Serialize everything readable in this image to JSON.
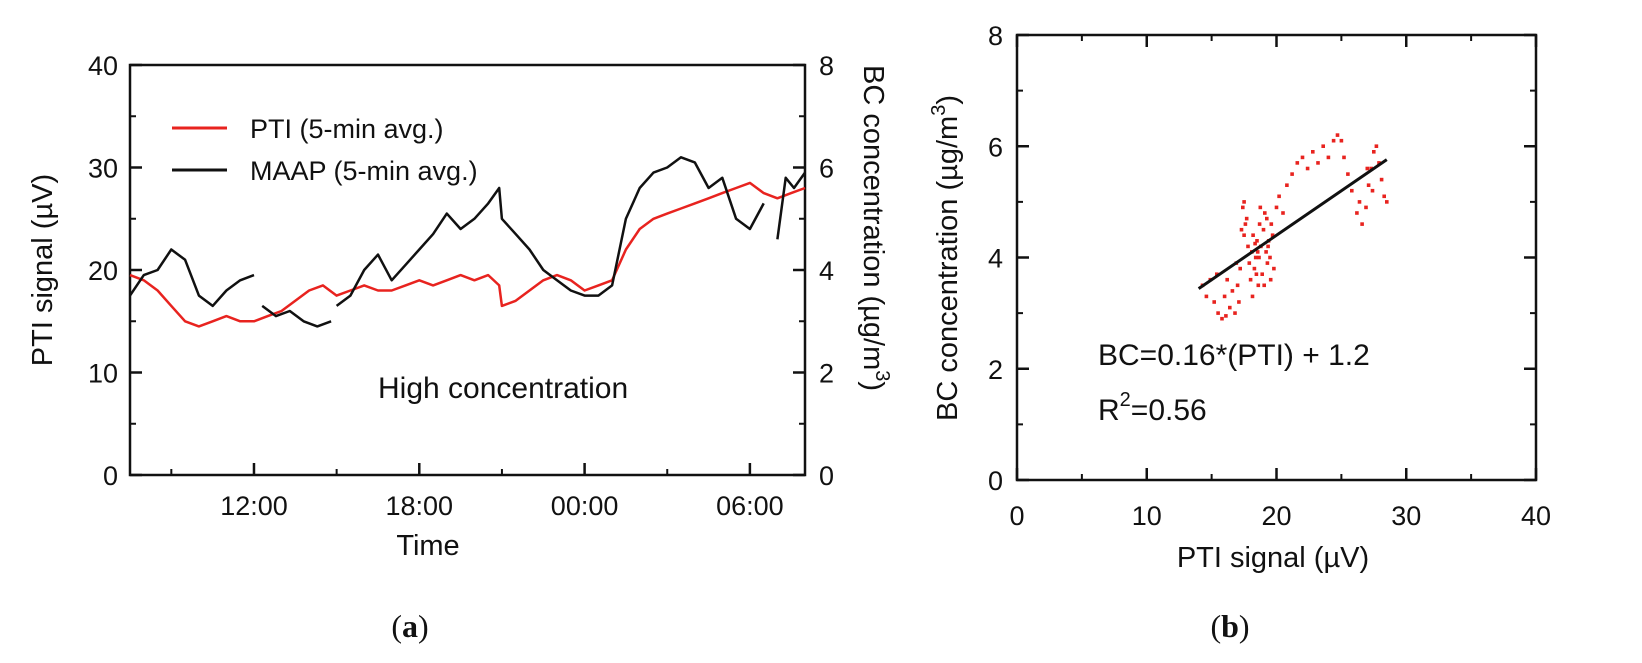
{
  "chart_data": [
    {
      "type": "line",
      "panel": "a",
      "xlabel": "Time",
      "ylabel_left": "PTI signal (µV)",
      "ylabel_right": "BC concentration (µg/m",
      "ylabel_right_sup": "3",
      "ylabel_right_close": ")",
      "x_hours_range": [
        7.5,
        32
      ],
      "x_tick_hours": [
        12,
        18,
        24,
        30
      ],
      "x_tick_labels": [
        "12:00",
        "18:00",
        "00:00",
        "06:00"
      ],
      "ylim_left": [
        0,
        40
      ],
      "yticks_left": [
        "0",
        "10",
        "20",
        "30",
        "40"
      ],
      "ylim_right": [
        0,
        8
      ],
      "yticks_right": [
        "0",
        "2",
        "4",
        "6",
        "8"
      ],
      "annotation": "High concentration",
      "legend": {
        "position": "top-left",
        "entries": [
          "PTI (5-min avg.)",
          "MAAP (5-min avg.)"
        ]
      },
      "series": [
        {
          "name": "PTI (5-min avg.)",
          "axis": "left",
          "color": "#e8231f",
          "x": [
            7.5,
            8,
            8.5,
            9,
            9.5,
            10,
            10.5,
            11,
            11.5,
            12,
            12.5,
            13,
            13.5,
            14,
            14.5,
            15,
            15.5,
            16,
            16.5,
            17,
            17.5,
            18,
            18.5,
            19,
            19.5,
            20,
            20.5,
            20.9,
            21,
            21.5,
            22,
            22.5,
            23,
            23.5,
            24,
            24.5,
            25,
            25.5,
            26,
            26.5,
            27,
            27.5,
            28,
            28.5,
            29,
            29.5,
            30,
            30.5,
            31,
            31.5,
            32
          ],
          "y": [
            19.5,
            19,
            18,
            16.5,
            15,
            14.5,
            15,
            15.5,
            15,
            15,
            15.5,
            16,
            17,
            18,
            18.5,
            17.5,
            18,
            18.5,
            18,
            18,
            18.5,
            19,
            18.5,
            19,
            19.5,
            19,
            19.5,
            18.5,
            16.5,
            17,
            18,
            19,
            19.5,
            19,
            18,
            18.5,
            19,
            22,
            24,
            25,
            25.5,
            26,
            26.5,
            27,
            27.5,
            28,
            28.5,
            27.5,
            27,
            27.5,
            28
          ]
        },
        {
          "name": "MAAP (5-min avg.)",
          "axis": "right",
          "color": "#111111",
          "segments": [
            {
              "x": [
                7.5,
                8,
                8.5,
                9,
                9.5,
                10,
                10.5,
                11,
                11.5,
                12
              ],
              "y": [
                3.5,
                3.9,
                4.0,
                4.4,
                4.2,
                3.5,
                3.3,
                3.6,
                3.8,
                3.9
              ]
            },
            {
              "x": [
                12.3,
                12.8,
                13.3,
                13.8,
                14.3,
                14.8
              ],
              "y": [
                3.3,
                3.1,
                3.2,
                3.0,
                2.9,
                3.0
              ]
            },
            {
              "x": [
                15,
                15.5,
                16,
                16.5,
                17,
                17.5,
                18,
                18.5,
                19,
                19.5,
                20,
                20.5,
                20.9,
                21,
                21.5,
                22,
                22.5,
                23,
                23.5,
                24,
                24.5,
                25,
                25.5,
                26,
                26.5,
                27,
                27.5,
                28,
                28.5,
                29,
                29.5,
                30,
                30.5
              ],
              "y": [
                3.3,
                3.5,
                4.0,
                4.3,
                3.8,
                4.1,
                4.4,
                4.7,
                5.1,
                4.8,
                5.0,
                5.3,
                5.6,
                5.0,
                4.7,
                4.4,
                4.0,
                3.8,
                3.6,
                3.5,
                3.5,
                3.7,
                5.0,
                5.6,
                5.9,
                6.0,
                6.2,
                6.1,
                5.6,
                5.8,
                5.0,
                4.8,
                5.3
              ]
            },
            {
              "x": [
                31,
                31.3,
                31.6,
                32
              ],
              "y": [
                4.6,
                5.8,
                5.6,
                5.9
              ]
            }
          ]
        }
      ]
    },
    {
      "type": "scatter",
      "panel": "b",
      "xlabel": "PTI signal (µV)",
      "ylabel": "BC concentration (µg/m",
      "ylabel_sup": "3",
      "ylabel_close": ")",
      "xlim": [
        0,
        40
      ],
      "ylim": [
        0,
        8
      ],
      "xticks": [
        "0",
        "10",
        "20",
        "30",
        "40"
      ],
      "yticks": [
        "0",
        "2",
        "4",
        "6",
        "8"
      ],
      "color": "#e8231f",
      "fit": {
        "slope": 0.16,
        "intercept": 1.2,
        "x_range": [
          14,
          28.5
        ]
      },
      "annotation_fit": "BC=0.16*(PTI) + 1.2",
      "annotation_r2_base": "R",
      "annotation_r2_sup": "2",
      "annotation_r2_value": "=0.56",
      "points": [
        [
          14.3,
          3.5
        ],
        [
          14.6,
          3.3
        ],
        [
          14.9,
          3.6
        ],
        [
          15.2,
          3.2
        ],
        [
          15.5,
          3.0
        ],
        [
          15.8,
          2.9
        ],
        [
          16.0,
          3.3
        ],
        [
          16.2,
          3.6
        ],
        [
          16.4,
          3.1
        ],
        [
          16.6,
          3.4
        ],
        [
          16.8,
          3.0
        ],
        [
          17.0,
          3.5
        ],
        [
          17.2,
          3.8
        ],
        [
          17.3,
          4.5
        ],
        [
          17.4,
          4.9
        ],
        [
          17.5,
          5.0
        ],
        [
          17.6,
          4.6
        ],
        [
          17.8,
          4.2
        ],
        [
          17.9,
          3.9
        ],
        [
          18.0,
          3.6
        ],
        [
          18.1,
          4.1
        ],
        [
          18.2,
          4.4
        ],
        [
          18.3,
          3.8
        ],
        [
          18.4,
          4.0
        ],
        [
          18.5,
          4.3
        ],
        [
          18.6,
          3.5
        ],
        [
          18.7,
          4.6
        ],
        [
          18.8,
          4.2
        ],
        [
          18.9,
          3.7
        ],
        [
          19.0,
          4.5
        ],
        [
          19.1,
          4.8
        ],
        [
          19.2,
          4.1
        ],
        [
          19.3,
          3.9
        ],
        [
          19.4,
          4.3
        ],
        [
          19.5,
          4.0
        ],
        [
          19.6,
          4.6
        ],
        [
          19.7,
          4.4
        ],
        [
          19.8,
          3.8
        ],
        [
          20.0,
          4.9
        ],
        [
          20.2,
          5.1
        ],
        [
          20.5,
          4.8
        ],
        [
          20.8,
          5.3
        ],
        [
          21.2,
          5.5
        ],
        [
          21.6,
          5.7
        ],
        [
          22.0,
          5.8
        ],
        [
          22.4,
          5.6
        ],
        [
          22.8,
          5.9
        ],
        [
          23.2,
          5.7
        ],
        [
          23.6,
          6.0
        ],
        [
          24.0,
          5.8
        ],
        [
          24.4,
          6.1
        ],
        [
          24.7,
          6.2
        ],
        [
          25.0,
          6.1
        ],
        [
          25.2,
          5.8
        ],
        [
          25.5,
          5.5
        ],
        [
          25.8,
          5.2
        ],
        [
          26.2,
          4.8
        ],
        [
          26.6,
          4.6
        ],
        [
          26.9,
          4.9
        ],
        [
          27.1,
          5.3
        ],
        [
          27.3,
          5.6
        ],
        [
          27.5,
          5.9
        ],
        [
          27.7,
          6.0
        ],
        [
          27.9,
          5.7
        ],
        [
          28.1,
          5.4
        ],
        [
          28.3,
          5.1
        ],
        [
          28.5,
          5.0
        ],
        [
          27.0,
          5.6
        ],
        [
          27.4,
          5.2
        ],
        [
          26.4,
          5.0
        ],
        [
          17.1,
          3.2
        ],
        [
          17.7,
          4.7
        ],
        [
          18.15,
          3.3
        ],
        [
          18.45,
          3.7
        ],
        [
          18.75,
          4.9
        ],
        [
          19.05,
          3.5
        ],
        [
          19.35,
          4.2
        ],
        [
          19.55,
          3.6
        ],
        [
          17.5,
          4.4
        ],
        [
          15.4,
          3.7
        ],
        [
          16.1,
          2.95
        ],
        [
          16.9,
          3.9
        ],
        [
          18.55,
          4.1
        ],
        [
          19.25,
          4.7
        ],
        [
          18.35,
          4.25
        ],
        [
          18.65,
          4.0
        ]
      ]
    }
  ],
  "captions": {
    "a": "a",
    "b": "b",
    "open": "(",
    "close": ")"
  }
}
